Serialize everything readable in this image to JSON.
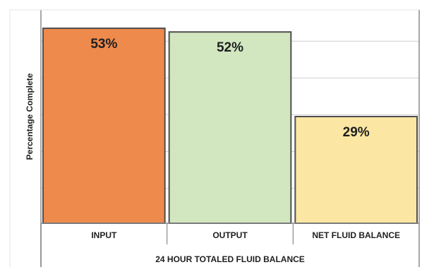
{
  "chart_data": {
    "type": "bar",
    "title": "",
    "xlabel": "24 HOUR TOTALED FLUID BALANCE",
    "ylabel": "Percentage Complete",
    "categories": [
      "INPUT",
      "OUTPUT",
      "NET FLUID BALANCE"
    ],
    "values": [
      53,
      52,
      29
    ],
    "data_labels": [
      "53%",
      "52%",
      "29%"
    ],
    "ylim": [
      0,
      58
    ],
    "grid": true,
    "legend": "none",
    "colors": {
      "fills": [
        "#ee8a4c",
        "#d2e7c0",
        "#fbe7a3"
      ],
      "strokes": [
        "#4f4f4f",
        "#4f4f4f",
        "#4f4f4f"
      ],
      "gridline": "#cfcfcf",
      "axis": "#8a8a8a",
      "text": "#1f1f1f"
    }
  }
}
